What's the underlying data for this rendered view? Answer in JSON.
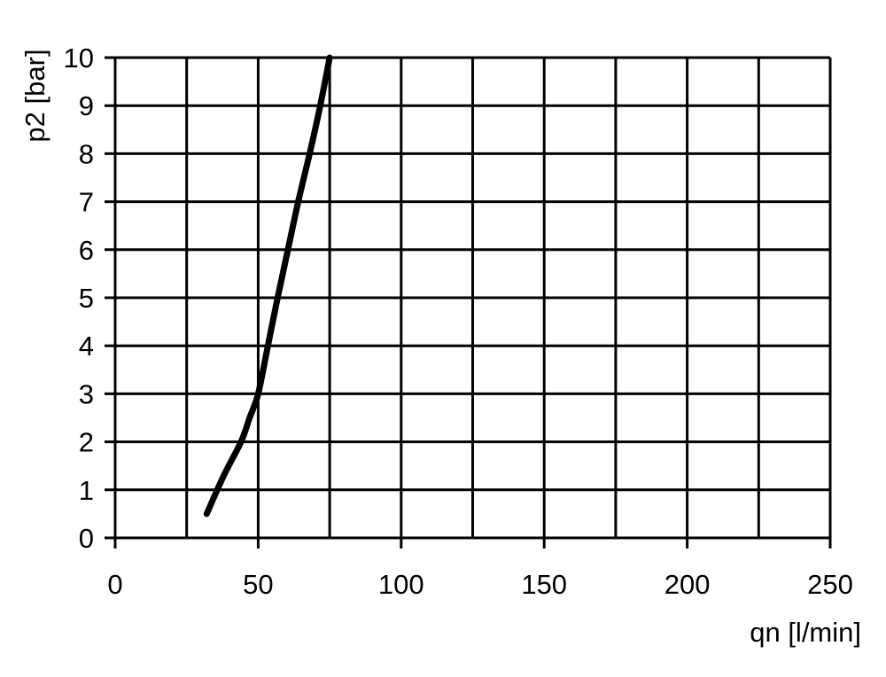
{
  "chart_data": {
    "type": "line",
    "title": "",
    "xlabel": "qn [l/min]",
    "ylabel": "p2 [bar]",
    "xlim": [
      0,
      250
    ],
    "ylim": [
      0,
      10
    ],
    "xticks": [
      "0",
      "50",
      "100",
      "150",
      "200",
      "250"
    ],
    "yticks": [
      "0",
      "1",
      "2",
      "3",
      "4",
      "5",
      "6",
      "7",
      "8",
      "9",
      "10"
    ],
    "grid": true,
    "grid_x_step": 25,
    "grid_y_step": 1,
    "line_color": "#000000",
    "series": [
      {
        "x": [
          32,
          38,
          44,
          47,
          50,
          53.4,
          56.8,
          60.4,
          64,
          68,
          71.7,
          75
        ],
        "y": [
          0.5,
          1.3,
          2,
          2.5,
          3,
          4,
          5,
          6,
          7,
          8,
          9,
          10
        ]
      }
    ]
  }
}
